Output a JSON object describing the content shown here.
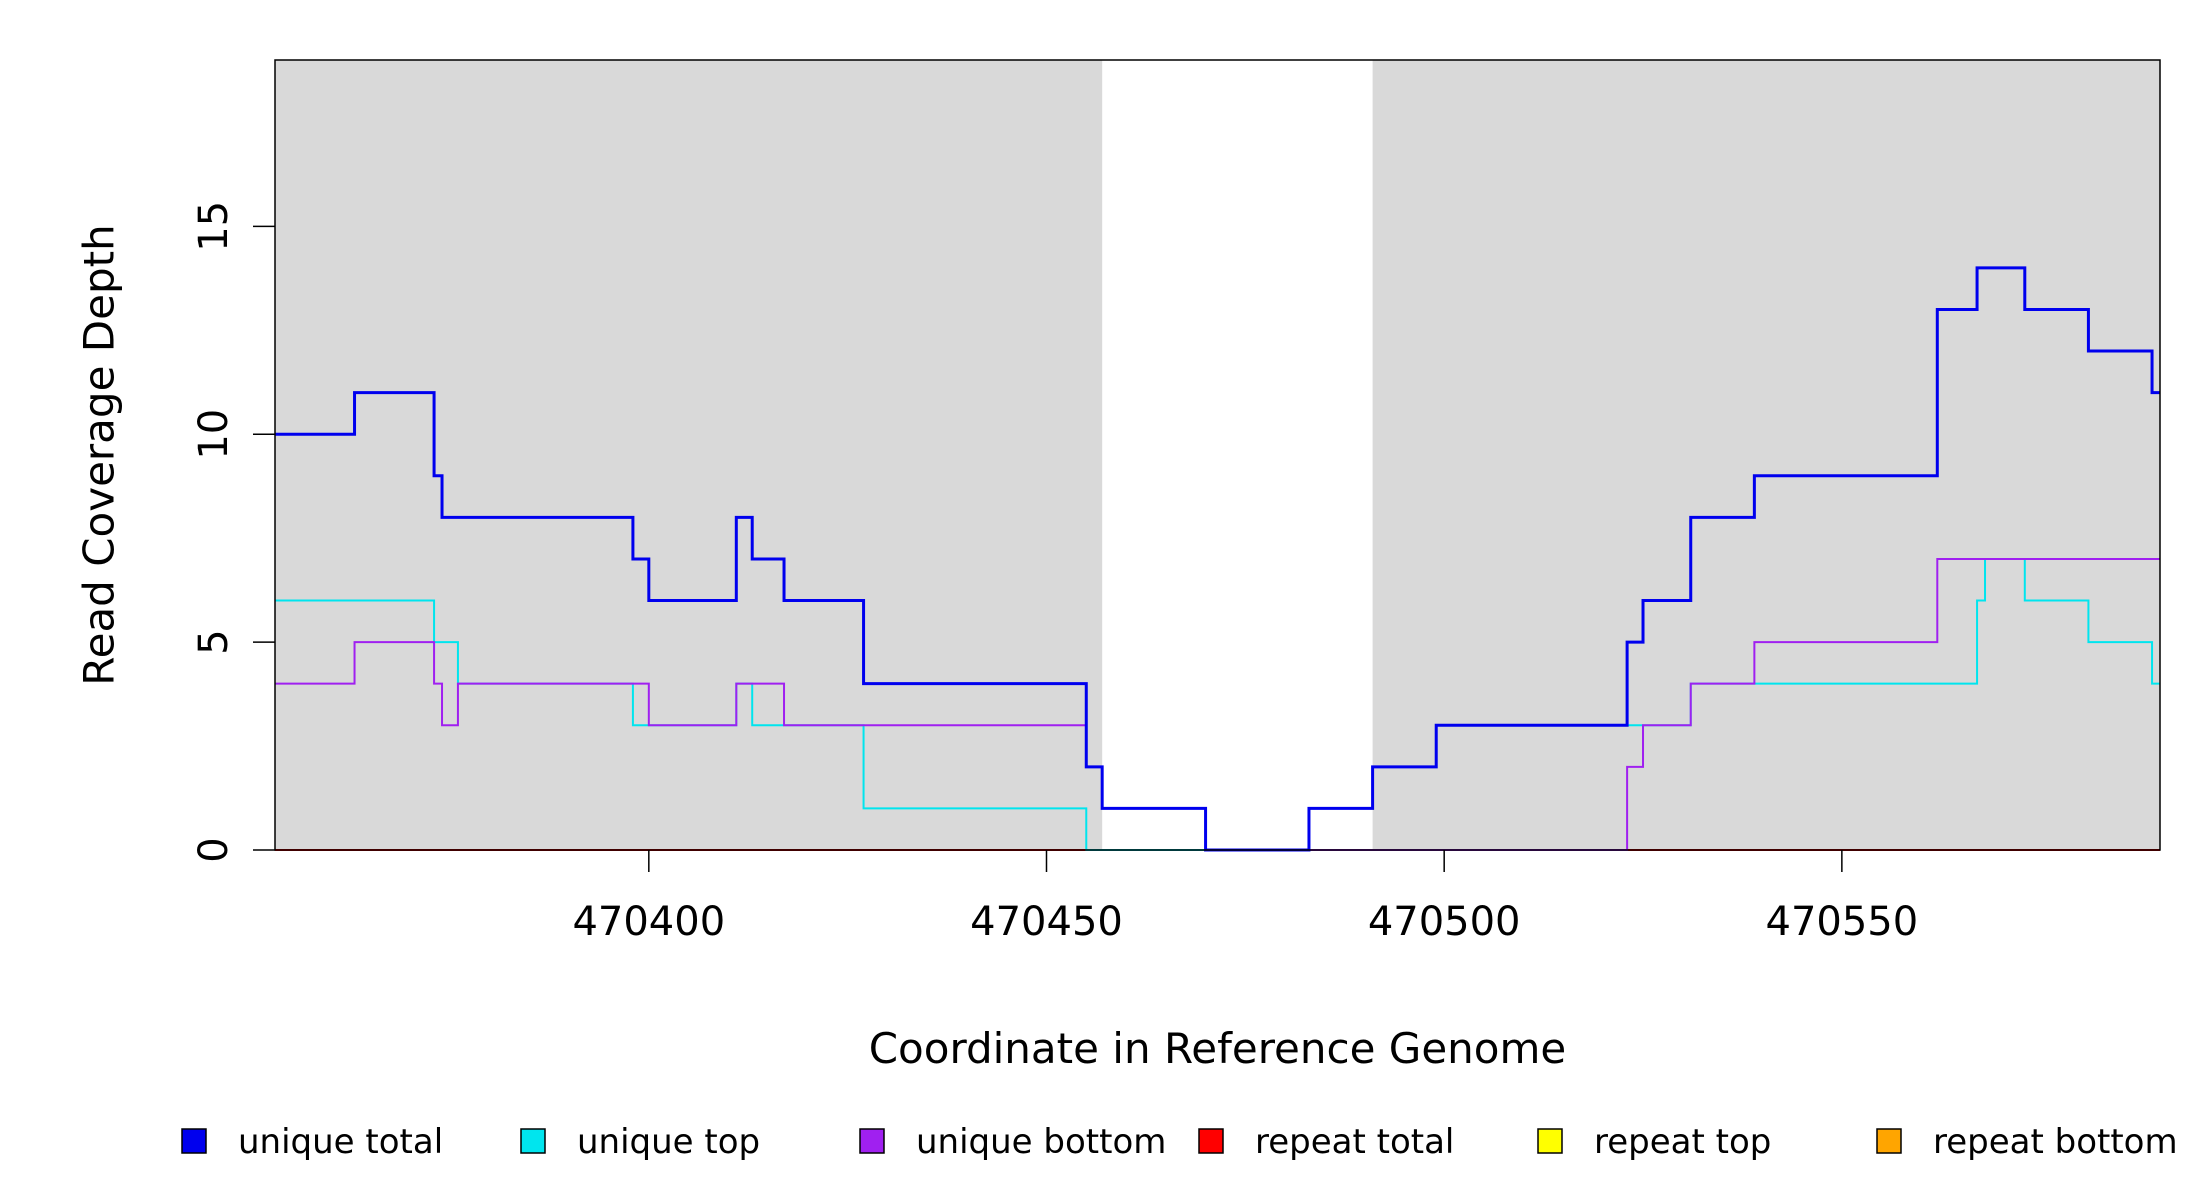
{
  "chart_data": {
    "type": "line",
    "title": "",
    "xlabel": "Coordinate in Reference Genome",
    "ylabel": "Read Coverage Depth",
    "xlim": [
      470353,
      470590
    ],
    "ylim": [
      0,
      19
    ],
    "xticks": [
      470400,
      470450,
      470500,
      470550
    ],
    "yticks": [
      0,
      5,
      10,
      15
    ],
    "shaded_regions": [
      [
        470353,
        470457
      ],
      [
        470491,
        470590
      ]
    ],
    "legend_position": "bottom",
    "series": [
      {
        "name": "unique total",
        "color": "#0000EE",
        "x": [
          470353,
          470363,
          470373,
          470374,
          470398,
          470400,
          470411,
          470413,
          470417,
          470427,
          470455,
          470457,
          470470,
          470483,
          470491,
          470499,
          470523,
          470525,
          470531,
          470539,
          470562,
          470567,
          470573,
          470581,
          470589,
          470590
        ],
        "y": [
          10,
          11,
          9,
          8,
          7,
          6,
          8,
          7,
          6,
          4,
          2,
          1,
          0,
          1,
          2,
          3,
          5,
          6,
          8,
          9,
          13,
          14,
          13,
          12,
          11,
          11
        ]
      },
      {
        "name": "unique top",
        "color": "#00E5EE",
        "x": [
          470353,
          470373,
          470376,
          470398,
          470413,
          470427,
          470455,
          470483,
          470491,
          470499,
          470562,
          470567,
          470573,
          470581,
          470589,
          470590
        ],
        "y": [
          6,
          5,
          4,
          3,
          3,
          1,
          0,
          1,
          2,
          3,
          4,
          6,
          7,
          6,
          5,
          4
        ],
        "steps": [
          [
            470353,
            6
          ],
          [
            470373,
            5
          ],
          [
            470376,
            4
          ],
          [
            470398,
            3
          ],
          [
            470400,
            3
          ],
          [
            470411,
            4
          ],
          [
            470413,
            3
          ],
          [
            470427,
            1
          ],
          [
            470455,
            0
          ],
          [
            470483,
            1
          ],
          [
            470491,
            2
          ],
          [
            470499,
            3
          ],
          [
            470525,
            3
          ],
          [
            470531,
            4
          ],
          [
            470562,
            4
          ],
          [
            470567,
            6
          ],
          [
            470568,
            7
          ],
          [
            470573,
            6
          ],
          [
            470581,
            5
          ],
          [
            470589,
            4
          ],
          [
            470590,
            4
          ]
        ]
      },
      {
        "name": "unique bottom",
        "color": "#A020F0",
        "x": [
          470353,
          470363,
          470373,
          470374,
          470376,
          470400,
          470411,
          470417,
          470455,
          470457,
          470470,
          470523,
          470525,
          470531,
          470539,
          470562,
          470590
        ],
        "y": [
          4,
          5,
          4,
          3,
          4,
          3,
          4,
          3,
          2,
          1,
          0,
          2,
          3,
          4,
          5,
          7,
          7
        ]
      },
      {
        "name": "repeat total",
        "color": "#FF0000",
        "x": [
          470353,
          470590
        ],
        "y": [
          0,
          0
        ]
      },
      {
        "name": "repeat top",
        "color": "#FFFF00",
        "x": [
          470353,
          470590
        ],
        "y": [
          0,
          0
        ]
      },
      {
        "name": "repeat bottom",
        "color": "#FFA500",
        "x": [
          470353,
          470590
        ],
        "y": [
          0,
          0
        ]
      }
    ]
  }
}
